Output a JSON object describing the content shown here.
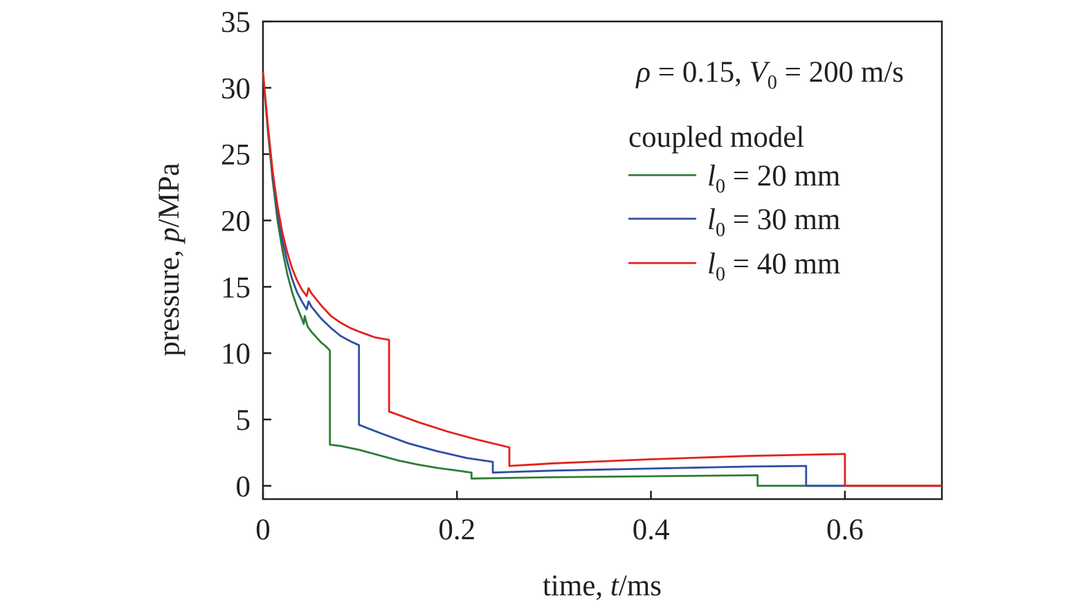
{
  "chart_data": {
    "type": "line",
    "xlabel": {
      "prefix": "time, ",
      "var": "t",
      "suffix": "/ms"
    },
    "ylabel": {
      "prefix": "pressure, ",
      "var": "p",
      "suffix": "/MPa"
    },
    "xlim": [
      0,
      0.7
    ],
    "ylim": [
      -1,
      35
    ],
    "x_ticks": [
      0,
      0.2,
      0.4,
      0.6
    ],
    "x_tick_labels": [
      "0",
      "0.2",
      "0.4",
      "0.6"
    ],
    "y_ticks": [
      0,
      5,
      10,
      15,
      20,
      25,
      30,
      35
    ],
    "y_tick_labels": [
      "0",
      "5",
      "10",
      "15",
      "20",
      "25",
      "30",
      "35"
    ],
    "grid": false,
    "legend_placement": "top-right",
    "annotation": {
      "rho_symbol": "ρ",
      "rho_text": " = 0.15, ",
      "v_symbol": "V",
      "v_sub": "0",
      "v_text": " = 200 m/s"
    },
    "legend_title": "coupled model",
    "series": [
      {
        "name": "l0 = 20 mm",
        "label_var": "l",
        "label_sub": "0",
        "label_text": " = 20 mm",
        "color": "#2e7d32",
        "points": [
          [
            0.0,
            31.2
          ],
          [
            0.005,
            26.8
          ],
          [
            0.01,
            23.0
          ],
          [
            0.015,
            20.0
          ],
          [
            0.02,
            17.8
          ],
          [
            0.025,
            16.0
          ],
          [
            0.03,
            14.6
          ],
          [
            0.035,
            13.5
          ],
          [
            0.04,
            12.6
          ],
          [
            0.042,
            12.2
          ],
          [
            0.043,
            12.8
          ],
          [
            0.046,
            12.0
          ],
          [
            0.05,
            11.6
          ],
          [
            0.055,
            11.2
          ],
          [
            0.06,
            10.8
          ],
          [
            0.065,
            10.5
          ],
          [
            0.069,
            10.2
          ],
          [
            0.069,
            3.1
          ],
          [
            0.08,
            3.0
          ],
          [
            0.1,
            2.7
          ],
          [
            0.12,
            2.3
          ],
          [
            0.14,
            1.9
          ],
          [
            0.16,
            1.6
          ],
          [
            0.18,
            1.35
          ],
          [
            0.2,
            1.15
          ],
          [
            0.215,
            1.0
          ],
          [
            0.215,
            0.55
          ],
          [
            0.3,
            0.65
          ],
          [
            0.4,
            0.72
          ],
          [
            0.51,
            0.8
          ],
          [
            0.51,
            0.0
          ],
          [
            0.7,
            0.0
          ]
        ]
      },
      {
        "name": "l0 = 30 mm",
        "label_var": "l",
        "label_sub": "0",
        "label_text": " = 30 mm",
        "color": "#2e4fa3",
        "points": [
          [
            0.0,
            31.2
          ],
          [
            0.005,
            27.0
          ],
          [
            0.01,
            23.3
          ],
          [
            0.015,
            20.6
          ],
          [
            0.02,
            18.5
          ],
          [
            0.025,
            16.9
          ],
          [
            0.03,
            15.6
          ],
          [
            0.035,
            14.6
          ],
          [
            0.04,
            13.9
          ],
          [
            0.045,
            13.3
          ],
          [
            0.047,
            13.9
          ],
          [
            0.05,
            13.5
          ],
          [
            0.06,
            12.6
          ],
          [
            0.07,
            11.9
          ],
          [
            0.08,
            11.3
          ],
          [
            0.09,
            10.9
          ],
          [
            0.099,
            10.6
          ],
          [
            0.099,
            4.6
          ],
          [
            0.12,
            4.0
          ],
          [
            0.15,
            3.2
          ],
          [
            0.18,
            2.6
          ],
          [
            0.21,
            2.1
          ],
          [
            0.237,
            1.8
          ],
          [
            0.237,
            1.0
          ],
          [
            0.3,
            1.15
          ],
          [
            0.4,
            1.3
          ],
          [
            0.5,
            1.45
          ],
          [
            0.56,
            1.5
          ],
          [
            0.56,
            0.0
          ],
          [
            0.7,
            0.0
          ]
        ]
      },
      {
        "name": "l0 = 40 mm",
        "label_var": "l",
        "label_sub": "0",
        "label_text": " = 40 mm",
        "color": "#e2231a",
        "points": [
          [
            0.0,
            31.2
          ],
          [
            0.005,
            27.2
          ],
          [
            0.01,
            23.7
          ],
          [
            0.015,
            21.1
          ],
          [
            0.02,
            19.1
          ],
          [
            0.025,
            17.6
          ],
          [
            0.03,
            16.4
          ],
          [
            0.035,
            15.5
          ],
          [
            0.04,
            14.8
          ],
          [
            0.045,
            14.3
          ],
          [
            0.047,
            14.9
          ],
          [
            0.05,
            14.5
          ],
          [
            0.06,
            13.6
          ],
          [
            0.07,
            12.8
          ],
          [
            0.08,
            12.3
          ],
          [
            0.09,
            11.9
          ],
          [
            0.1,
            11.6
          ],
          [
            0.115,
            11.2
          ],
          [
            0.13,
            11.0
          ],
          [
            0.13,
            5.6
          ],
          [
            0.16,
            4.8
          ],
          [
            0.19,
            4.1
          ],
          [
            0.22,
            3.5
          ],
          [
            0.254,
            2.9
          ],
          [
            0.254,
            1.5
          ],
          [
            0.3,
            1.7
          ],
          [
            0.4,
            2.0
          ],
          [
            0.5,
            2.25
          ],
          [
            0.6,
            2.4
          ],
          [
            0.6,
            0.0
          ],
          [
            0.7,
            0.0
          ]
        ]
      }
    ]
  }
}
